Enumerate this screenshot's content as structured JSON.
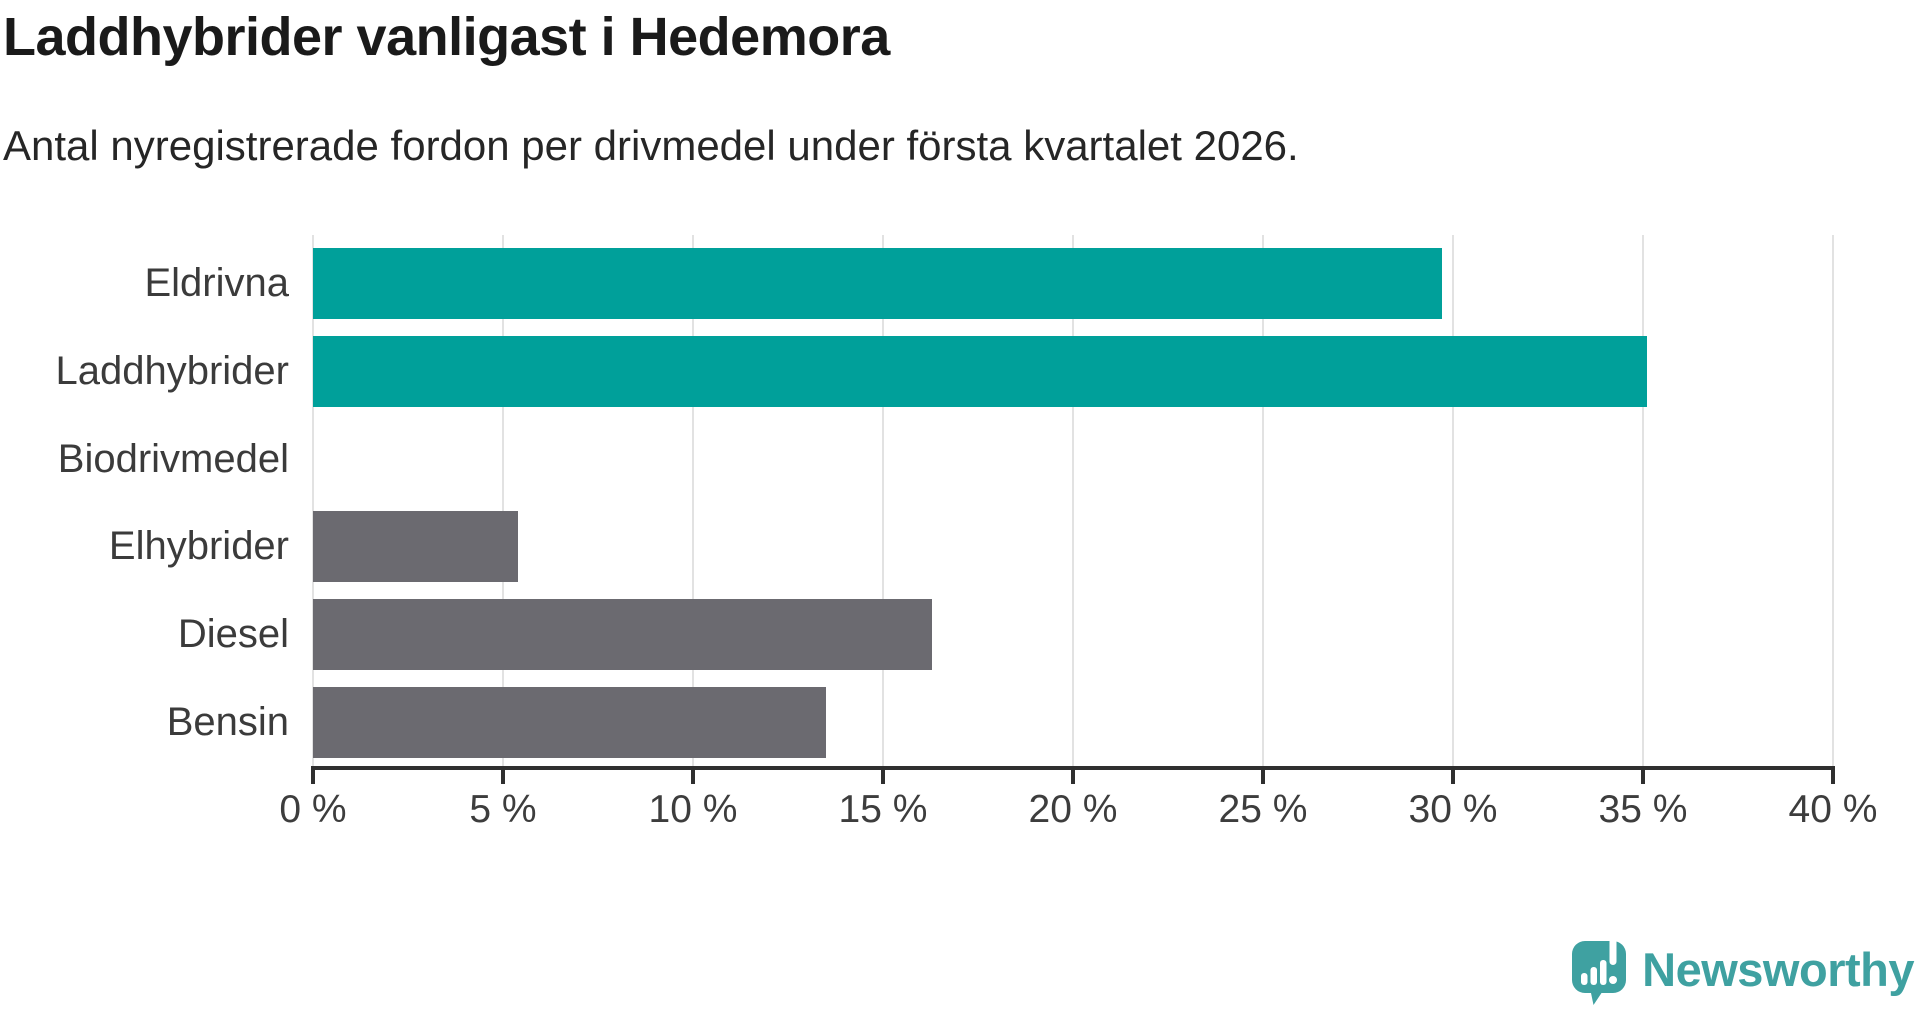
{
  "header": {
    "title": "Laddhybrider vanligast i Hedemora",
    "subtitle": "Antal nyregistrerade fordon per drivmedel under första kvartalet 2026."
  },
  "chart_data": {
    "type": "bar",
    "orientation": "horizontal",
    "title": "Laddhybrider vanligast i Hedemora",
    "subtitle": "Antal nyregistrerade fordon per drivmedel under första kvartalet 2026.",
    "categories": [
      "Eldrivna",
      "Laddhybrider",
      "Biodrivmedel",
      "Elhybrider",
      "Diesel",
      "Bensin"
    ],
    "values": [
      29.7,
      35.1,
      0,
      5.4,
      16.3,
      13.5
    ],
    "unit": "%",
    "xlabel": "",
    "ylabel": "",
    "xlim": [
      0,
      40
    ],
    "xticks": [
      0,
      5,
      10,
      15,
      20,
      25,
      30,
      35,
      40
    ],
    "xtick_labels": [
      "0 %",
      "5 %",
      "10 %",
      "15 %",
      "20 %",
      "25 %",
      "30 %",
      "35 %",
      "40 %"
    ],
    "grid": true,
    "legend": "none",
    "highlight_color": "#00a09a",
    "default_color": "#6b6a70",
    "bar_colors": [
      "#00a09a",
      "#00a09a",
      "#00a09a",
      "#6b6a70",
      "#6b6a70",
      "#6b6a70"
    ],
    "gridline_color": "#e2e2e2",
    "axis_color": "#2f2f2f"
  },
  "footer": {
    "brand": "Newsworthy",
    "brand_color": "#3fa1a1",
    "logo_icon": "newsworthy-speech-bubble-chart-icon"
  }
}
